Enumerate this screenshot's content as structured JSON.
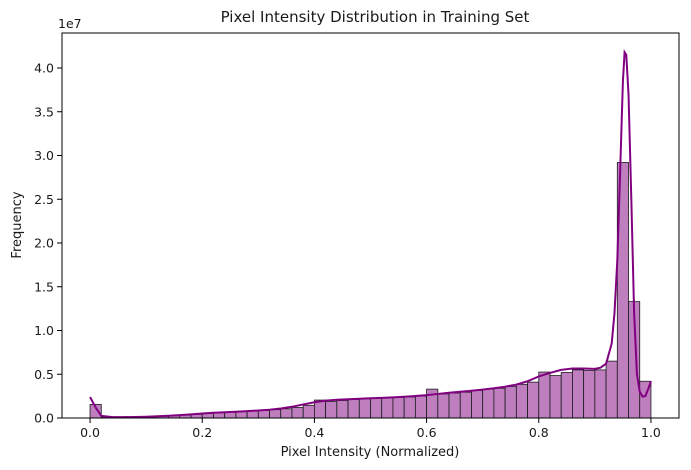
{
  "chart_data": {
    "type": "bar",
    "title": "Pixel Intensity Distribution in Training Set",
    "xlabel": "Pixel Intensity (Normalized)",
    "ylabel": "Frequency",
    "y_offset_label": "1e7",
    "xlim": [
      -0.05,
      1.05
    ],
    "ylim": [
      0,
      4.4
    ],
    "y_unit_multiplier": 10000000,
    "x_ticks": [
      0.0,
      0.2,
      0.4,
      0.6,
      0.8,
      1.0
    ],
    "x_tick_labels": [
      "0.0",
      "0.2",
      "0.4",
      "0.6",
      "0.8",
      "1.0"
    ],
    "y_ticks": [
      0.0,
      0.5,
      1.0,
      1.5,
      2.0,
      2.5,
      3.0,
      3.5,
      4.0
    ],
    "y_tick_labels": [
      "0.0",
      "0.5",
      "1.0",
      "1.5",
      "2.0",
      "2.5",
      "3.0",
      "3.5",
      "4.0"
    ],
    "bin_width": 0.02,
    "bin_starts": [
      0.0,
      0.02,
      0.04,
      0.06,
      0.08,
      0.1,
      0.12,
      0.14,
      0.16,
      0.18,
      0.2,
      0.22,
      0.24,
      0.26,
      0.28,
      0.3,
      0.32,
      0.34,
      0.36,
      0.38,
      0.4,
      0.42,
      0.44,
      0.46,
      0.48,
      0.5,
      0.52,
      0.54,
      0.56,
      0.58,
      0.6,
      0.62,
      0.64,
      0.66,
      0.68,
      0.7,
      0.72,
      0.74,
      0.76,
      0.78,
      0.8,
      0.82,
      0.84,
      0.86,
      0.88,
      0.9,
      0.92,
      0.94,
      0.96,
      0.98
    ],
    "values": [
      1.55,
      0.12,
      0.1,
      0.1,
      0.12,
      0.15,
      0.2,
      0.26,
      0.33,
      0.42,
      0.52,
      0.6,
      0.66,
      0.72,
      0.79,
      0.86,
      0.95,
      1.05,
      1.2,
      1.45,
      2.05,
      1.88,
      2.0,
      2.12,
      2.2,
      2.25,
      2.3,
      2.35,
      2.4,
      2.5,
      3.3,
      2.75,
      2.85,
      2.95,
      3.15,
      3.3,
      3.4,
      3.6,
      3.85,
      4.1,
      5.25,
      4.85,
      5.2,
      5.5,
      5.45,
      5.5,
      6.5,
      29.2,
      13.3,
      4.2
    ],
    "values_note_scale": "values x 1e6",
    "kde_x": [
      0.0,
      0.01,
      0.02,
      0.04,
      0.06,
      0.08,
      0.1,
      0.12,
      0.14,
      0.16,
      0.18,
      0.2,
      0.22,
      0.24,
      0.26,
      0.28,
      0.3,
      0.32,
      0.34,
      0.36,
      0.38,
      0.4,
      0.42,
      0.44,
      0.46,
      0.48,
      0.5,
      0.52,
      0.54,
      0.56,
      0.58,
      0.6,
      0.62,
      0.64,
      0.66,
      0.68,
      0.7,
      0.72,
      0.74,
      0.76,
      0.78,
      0.8,
      0.82,
      0.84,
      0.86,
      0.88,
      0.9,
      0.91,
      0.92,
      0.93,
      0.935,
      0.94,
      0.945,
      0.95,
      0.953,
      0.956,
      0.96,
      0.965,
      0.97,
      0.975,
      0.98,
      0.985,
      0.99,
      0.995,
      1.0
    ],
    "kde_y": [
      2.4,
      1.2,
      0.25,
      0.1,
      0.1,
      0.12,
      0.15,
      0.2,
      0.26,
      0.33,
      0.42,
      0.52,
      0.6,
      0.66,
      0.72,
      0.79,
      0.86,
      0.95,
      1.08,
      1.28,
      1.55,
      1.8,
      1.98,
      2.08,
      2.15,
      2.2,
      2.25,
      2.3,
      2.36,
      2.43,
      2.52,
      2.62,
      2.75,
      2.88,
      3.0,
      3.12,
      3.25,
      3.4,
      3.58,
      3.82,
      4.2,
      4.75,
      5.15,
      5.5,
      5.65,
      5.65,
      5.62,
      5.75,
      6.2,
      8.5,
      12.0,
      18.0,
      28.0,
      38.5,
      41.8,
      41.5,
      37.0,
      25.0,
      12.0,
      5.0,
      3.0,
      2.45,
      2.5,
      3.3,
      4.2
    ],
    "kde_note_scale": "kde_y x 1e6",
    "bar_fill": "#bf7fbf",
    "bar_edge": "#1a1a1a",
    "kde_color": "#800080",
    "grid": false,
    "legend": "none"
  }
}
